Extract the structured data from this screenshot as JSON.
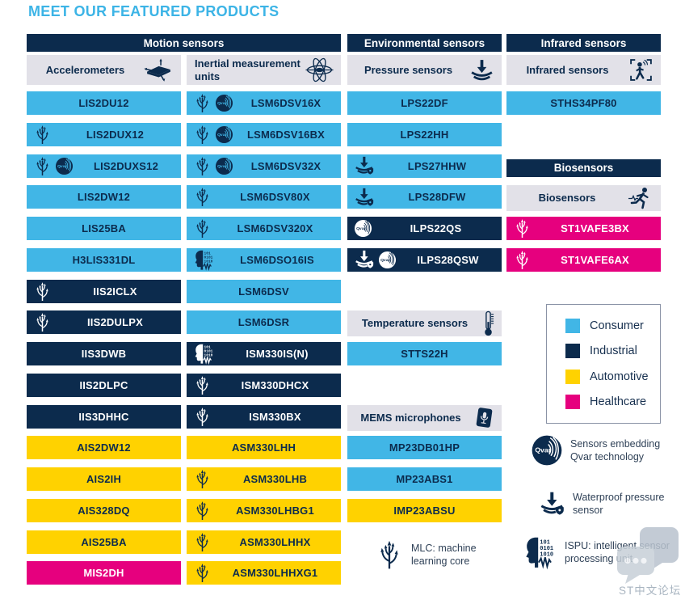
{
  "title": "MEET OUR FEATURED PRODUCTS",
  "watermark": {
    "text": "ST中文论坛",
    "icon": "chat-bubbles-icon"
  },
  "colors": {
    "consumer": "#41B6E6",
    "industrial": "#0C2B4D",
    "automotive": "#FFD200",
    "healthcare": "#E6007E",
    "header_bg": "#0C2B4D",
    "subheader_bg": "#E2E1E8",
    "title": "#3CB4E6"
  },
  "group_headers": [
    {
      "label": "Motion sensors",
      "col": 0,
      "span": 2
    },
    {
      "label": "Environmental sensors",
      "col": 2,
      "span": 1
    },
    {
      "label": "Infrared sensors",
      "col": 3,
      "span": 1
    }
  ],
  "subheaders": [
    {
      "label": "Accelerometers",
      "icon": "accelerometer-icon",
      "col": 0,
      "two_line": false
    },
    {
      "label": "Inertial measurement units",
      "icon": "gyroscope-icon",
      "col": 1,
      "two_line": true
    },
    {
      "label": "Pressure sensors",
      "icon": "pressure-icon",
      "col": 2,
      "two_line": false
    },
    {
      "label": "Infrared sensors",
      "icon": "infrared-icon",
      "col": 3,
      "two_line": false
    }
  ],
  "columns": [
    {
      "items": [
        {
          "slot": 0,
          "type": "product",
          "label": "LIS2DU12",
          "category": "consumer",
          "icons": []
        },
        {
          "slot": 1,
          "type": "product",
          "label": "LIS2DUX12",
          "category": "consumer",
          "icons": [
            "mlc-icon"
          ]
        },
        {
          "slot": 2,
          "type": "product",
          "label": "LIS2DUXS12",
          "category": "consumer",
          "icons": [
            "mlc-icon",
            "qvar-icon"
          ]
        },
        {
          "slot": 3,
          "type": "product",
          "label": "LIS2DW12",
          "category": "consumer",
          "icons": []
        },
        {
          "slot": 4,
          "type": "product",
          "label": "LIS25BA",
          "category": "consumer",
          "icons": []
        },
        {
          "slot": 5,
          "type": "product",
          "label": "H3LIS331DL",
          "category": "consumer",
          "icons": []
        },
        {
          "slot": 6,
          "type": "product",
          "label": "IIS2ICLX",
          "category": "industrial",
          "icons": [
            "mlc-icon"
          ]
        },
        {
          "slot": 7,
          "type": "product",
          "label": "IIS2DULPX",
          "category": "industrial",
          "icons": [
            "mlc-icon"
          ]
        },
        {
          "slot": 8,
          "type": "product",
          "label": "IIS3DWB",
          "category": "industrial",
          "icons": []
        },
        {
          "slot": 9,
          "type": "product",
          "label": "IIS2DLPC",
          "category": "industrial",
          "icons": []
        },
        {
          "slot": 10,
          "type": "product",
          "label": "IIS3DHHC",
          "category": "industrial",
          "icons": []
        },
        {
          "slot": 11,
          "type": "product",
          "label": "AIS2DW12",
          "category": "automotive",
          "icons": []
        },
        {
          "slot": 12,
          "type": "product",
          "label": "AIS2IH",
          "category": "automotive",
          "icons": []
        },
        {
          "slot": 13,
          "type": "product",
          "label": "AIS328DQ",
          "category": "automotive",
          "icons": []
        },
        {
          "slot": 14,
          "type": "product",
          "label": "AIS25BA",
          "category": "automotive",
          "icons": []
        },
        {
          "slot": 15,
          "type": "product",
          "label": "MIS2DH",
          "category": "healthcare",
          "icons": []
        }
      ]
    },
    {
      "items": [
        {
          "slot": 0,
          "type": "product",
          "label": "LSM6DSV16X",
          "category": "consumer",
          "icons": [
            "mlc-icon",
            "qvar-icon"
          ]
        },
        {
          "slot": 1,
          "type": "product",
          "label": "LSM6DSV16BX",
          "category": "consumer",
          "icons": [
            "mlc-icon",
            "qvar-icon"
          ]
        },
        {
          "slot": 2,
          "type": "product",
          "label": "LSM6DSV32X",
          "category": "consumer",
          "icons": [
            "mlc-icon",
            "qvar-icon"
          ]
        },
        {
          "slot": 3,
          "type": "product",
          "label": "LSM6DSV80X",
          "category": "consumer",
          "icons": [
            "mlc-icon"
          ]
        },
        {
          "slot": 4,
          "type": "product",
          "label": "LSM6DSV320X",
          "category": "consumer",
          "icons": [
            "mlc-icon"
          ]
        },
        {
          "slot": 5,
          "type": "product",
          "label": "LSM6DSO16IS",
          "category": "consumer",
          "icons": [
            "ispu-icon"
          ]
        },
        {
          "slot": 6,
          "type": "product",
          "label": "LSM6DSV",
          "category": "consumer",
          "icons": []
        },
        {
          "slot": 7,
          "type": "product",
          "label": "LSM6DSR",
          "category": "consumer",
          "icons": []
        },
        {
          "slot": 8,
          "type": "product",
          "label": "ISM330IS(N)",
          "category": "industrial",
          "icons": [
            "ispu-icon"
          ]
        },
        {
          "slot": 9,
          "type": "product",
          "label": "ISM330DHCX",
          "category": "industrial",
          "icons": [
            "mlc-icon"
          ]
        },
        {
          "slot": 10,
          "type": "product",
          "label": "ISM330BX",
          "category": "industrial",
          "icons": [
            "mlc-icon"
          ]
        },
        {
          "slot": 11,
          "type": "product",
          "label": "ASM330LHH",
          "category": "automotive",
          "icons": []
        },
        {
          "slot": 12,
          "type": "product",
          "label": "ASM330LHB",
          "category": "automotive",
          "icons": [
            "mlc-icon"
          ]
        },
        {
          "slot": 13,
          "type": "product",
          "label": "ASM330LHBG1",
          "category": "automotive",
          "icons": [
            "mlc-icon"
          ]
        },
        {
          "slot": 14,
          "type": "product",
          "label": "ASM330LHHX",
          "category": "automotive",
          "icons": [
            "mlc-icon"
          ]
        },
        {
          "slot": 15,
          "type": "product",
          "label": "ASM330LHHXG1",
          "category": "automotive",
          "icons": [
            "mlc-icon"
          ]
        }
      ]
    },
    {
      "items": [
        {
          "slot": 0,
          "type": "product",
          "label": "LPS22DF",
          "category": "consumer",
          "icons": []
        },
        {
          "slot": 1,
          "type": "product",
          "label": "LPS22HH",
          "category": "consumer",
          "icons": []
        },
        {
          "slot": 2,
          "type": "product",
          "label": "LPS27HHW",
          "category": "consumer",
          "icons": [
            "waterproof-icon"
          ]
        },
        {
          "slot": 3,
          "type": "product",
          "label": "LPS28DFW",
          "category": "consumer",
          "icons": [
            "waterproof-icon"
          ]
        },
        {
          "slot": 4,
          "type": "product",
          "label": "ILPS22QS",
          "category": "industrial",
          "icons": [
            "qvar-icon"
          ]
        },
        {
          "slot": 5,
          "type": "product",
          "label": "ILPS28QSW",
          "category": "industrial",
          "icons": [
            "waterproof-icon",
            "qvar-icon"
          ]
        },
        {
          "slot": 7,
          "type": "subheader",
          "label": "Temperature sensors",
          "icon": "thermometer-icon"
        },
        {
          "slot": 8,
          "type": "product",
          "label": "STTS22H",
          "category": "consumer",
          "icons": []
        },
        {
          "slot": 10,
          "type": "subheader",
          "label": "MEMS microphones",
          "icon": "microphone-icon"
        },
        {
          "slot": 11,
          "type": "product",
          "label": "MP23DB01HP",
          "category": "consumer",
          "icons": []
        },
        {
          "slot": 12,
          "type": "product",
          "label": "MP23ABS1",
          "category": "consumer",
          "icons": []
        },
        {
          "slot": 13,
          "type": "product",
          "label": "IMP23ABSU",
          "category": "automotive",
          "icons": []
        }
      ]
    },
    {
      "items": [
        {
          "slot": 0,
          "type": "product",
          "label": "STHS34PF80",
          "category": "consumer",
          "icons": []
        },
        {
          "slot": 2,
          "type": "groupheader",
          "label": "Biosensors"
        },
        {
          "slot": 3,
          "type": "subheader",
          "label": "Biosensors",
          "icon": "biosensor-icon"
        },
        {
          "slot": 4,
          "type": "product",
          "label": "ST1VAFE3BX",
          "category": "healthcare",
          "icons": [
            "mlc-icon"
          ]
        },
        {
          "slot": 5,
          "type": "product",
          "label": "ST1VAFE6AX",
          "category": "healthcare",
          "icons": [
            "mlc-icon"
          ]
        }
      ]
    }
  ],
  "legend": {
    "items": [
      {
        "label": "Consumer",
        "color": "#41B6E6"
      },
      {
        "label": "Industrial",
        "color": "#0C2B4D"
      },
      {
        "label": "Automotive",
        "color": "#FFD200"
      },
      {
        "label": "Healthcare",
        "color": "#E6007E"
      }
    ]
  },
  "footnotes": [
    {
      "id": "mlc",
      "icon": "mlc-icon",
      "lines": [
        "MLC: machine",
        "learning core"
      ]
    },
    {
      "id": "qvar",
      "icon": "qvar-icon",
      "lines": [
        "Sensors embedding",
        "Qvar technology"
      ]
    },
    {
      "id": "waterproof",
      "icon": "waterproof-icon",
      "lines": [
        "Waterproof pressure",
        "sensor"
      ]
    },
    {
      "id": "ispu",
      "icon": "ispu-icon",
      "lines": [
        "ISPU: intelligent sensor",
        "processing unit"
      ]
    }
  ]
}
